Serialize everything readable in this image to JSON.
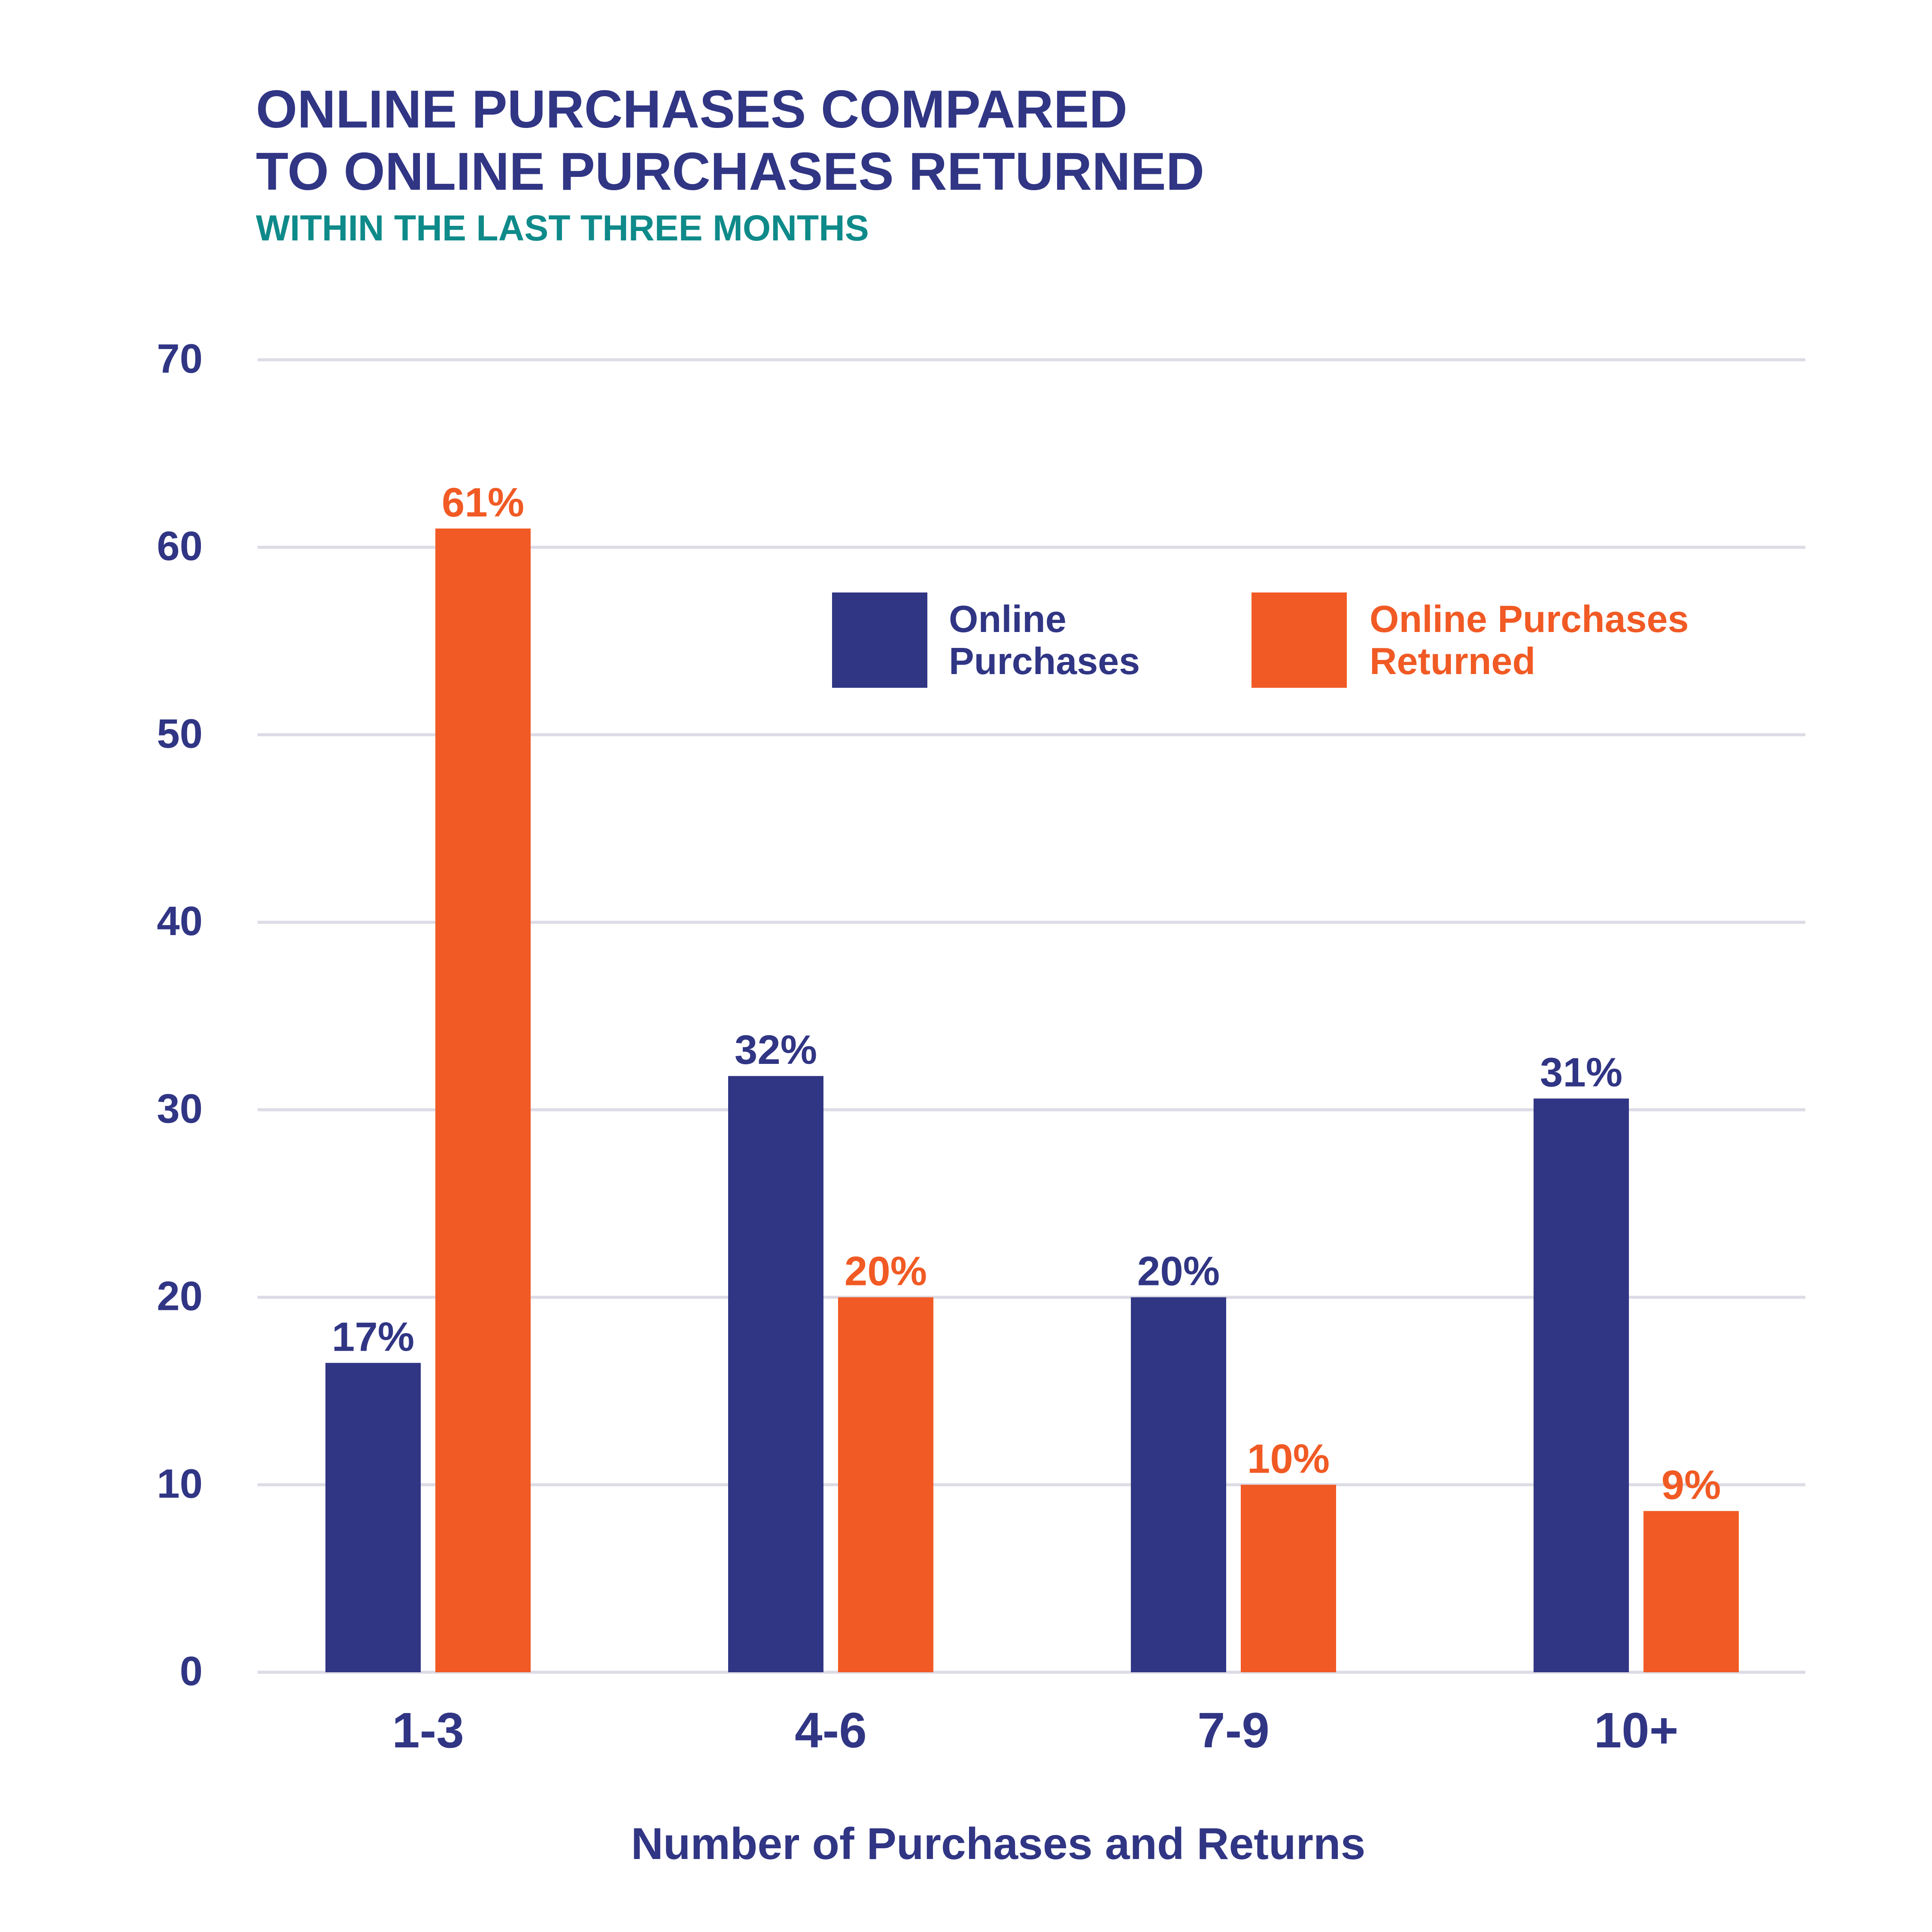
{
  "chart_data": {
    "type": "bar",
    "title": "ONLINE PURCHASES COMPARED TO ONLINE PURCHASES RETURNED",
    "title_lines": [
      "ONLINE PURCHASES COMPARED",
      "TO ONLINE PURCHASES RETURNED"
    ],
    "subtitle": "WITHIN THE LAST THREE MONTHS",
    "xlabel": "Number of Purchases and Returns",
    "ylabel": "",
    "ylim": [
      0,
      70
    ],
    "yticks": [
      0,
      10,
      20,
      30,
      40,
      50,
      60,
      70
    ],
    "grid": true,
    "legend_position": "top-right",
    "categories": [
      "1-3",
      "4-6",
      "7-9",
      "10+"
    ],
    "series": [
      {
        "name": "Online Purchases",
        "legend_lines": [
          "Online",
          "Purchases"
        ],
        "color": "#303584",
        "values": [
          16.5,
          31.8,
          20,
          30.6
        ],
        "labels": [
          "17%",
          "32%",
          "20%",
          "31%"
        ]
      },
      {
        "name": "Online Purchases Returned",
        "legend_lines": [
          "Online Purchases",
          "Returned"
        ],
        "color": "#f15a24",
        "values": [
          61,
          20,
          10,
          8.6
        ],
        "labels": [
          "61%",
          "20%",
          "10%",
          "9%"
        ]
      }
    ]
  },
  "colors": {
    "title": "#303584",
    "subtitle": "#0f8a8a",
    "grid": "#dcdbe6",
    "axis_text": "#303584"
  }
}
